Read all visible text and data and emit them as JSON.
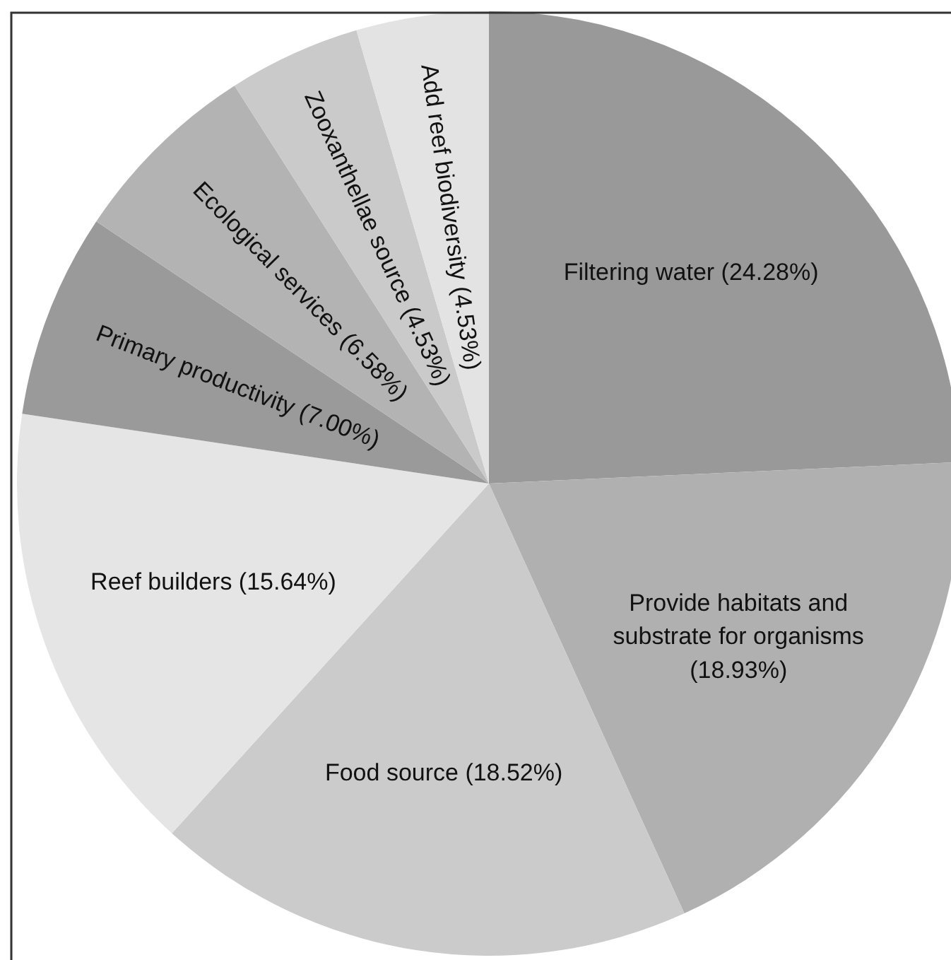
{
  "chart_data": {
    "type": "pie",
    "categories": [
      "Filtering water",
      "Provide habitats and substrate for organisms",
      "Food source",
      "Reef builders",
      "Primary productivity",
      "Ecological services",
      "Zooxanthellae source",
      "Add reef biodiversity"
    ],
    "values": [
      24.28,
      18.93,
      18.52,
      15.64,
      7.0,
      6.58,
      4.53,
      4.53
    ],
    "value_labels": [
      "(24.28%)",
      "(18.93%)",
      "(18.52%)",
      "(15.64%)",
      "(7.00%)",
      "(6.58%)",
      "(4.53%)",
      "(4.53%)"
    ],
    "colors": [
      "#999999",
      "#b0b0b0",
      "#cbcbcb",
      "#e5e5e5",
      "#9a9a9a",
      "#b3b3b3",
      "#cacaca",
      "#e3e3e3"
    ]
  }
}
